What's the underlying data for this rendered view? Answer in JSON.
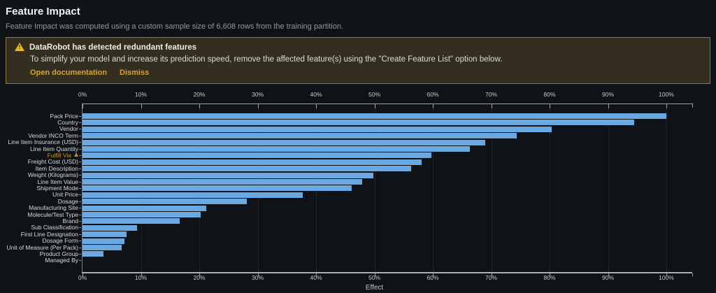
{
  "header": {
    "title": "Feature Impact",
    "subtitle": "Feature Impact was computed using a custom sample size of 6,608 rows from the training partition."
  },
  "banner": {
    "icon": "warning-triangle-icon",
    "icon_exclamation": "!",
    "title": "DataRobot has detected redundant features",
    "message": "To simplify your model and increase its prediction speed, remove the affected feature(s) using the \"Create Feature List\" option below.",
    "links": [
      {
        "label": "Open documentation"
      },
      {
        "label": "Dismiss"
      }
    ],
    "colors": {
      "background": "#332e1f",
      "border": "#8c7b3a",
      "link": "#d4a62f",
      "icon": "#e6b92f"
    }
  },
  "chart_data": {
    "type": "bar",
    "orientation": "horizontal",
    "xlabel": "Effect",
    "xlim": [
      0,
      100
    ],
    "x_ticks": [
      "0%",
      "10%",
      "20%",
      "30%",
      "40%",
      "50%",
      "60%",
      "70%",
      "80%",
      "90%",
      "100%"
    ],
    "grid": true,
    "categories": [
      "Pack Price",
      "Country",
      "Vendor",
      "Vendor INCO Term",
      "Line Item Insurance (USD)",
      "Line Item Quantity",
      "Fulfill Via",
      "Freight Cost (USD)",
      "Item Description",
      "Weight (Kilograms)",
      "Line Item Value",
      "Shipment Mode",
      "Unit Price",
      "Dosage",
      "Manufacturing Site",
      "Molecule/Test Type",
      "Brand",
      "Sub Classification",
      "First Line Designation",
      "Dosage Form",
      "Unit of Measure (Per Pack)",
      "Product Group",
      "Managed By"
    ],
    "values": [
      100,
      94.5,
      80.3,
      74.4,
      69,
      66.3,
      59.8,
      58.1,
      56.3,
      49.8,
      47.9,
      46.1,
      37.7,
      28.1,
      21.2,
      20.2,
      16.6,
      9.4,
      7.5,
      7.2,
      6.7,
      3.6,
      0
    ],
    "highlighted_feature": "Fulfill Via",
    "bar_color": "#69a8e1",
    "highlight_label_color": "#c09a2a"
  }
}
